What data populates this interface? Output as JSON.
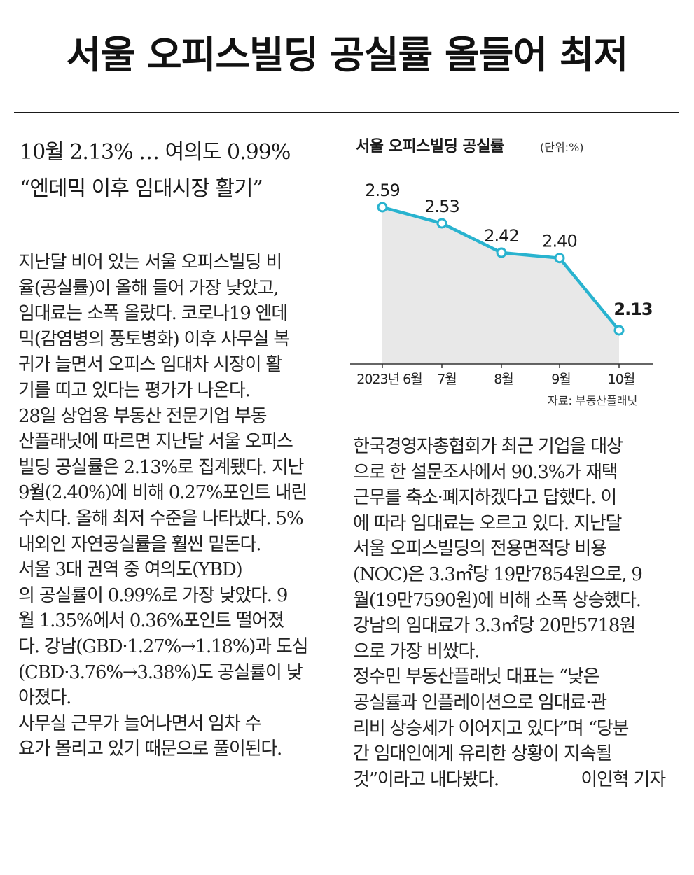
{
  "headline": "서울 오피스빌딩 공실률 올들어 최저",
  "subhead": [
    "10월 2.13% … 여의도 0.99%",
    "“엔데믹 이후 임대시장 활기”"
  ],
  "left_column": [
    "지난달 비어 있는 서울 오피스빌딩 비",
    "율(공실률)이 올해 들어 가장 낮았고,",
    "임대료는 소폭 올랐다. 코로나19 엔데",
    "믹(감염병의 풍토병화) 이후 사무실 복",
    "귀가 늘면서 오피스 임대차 시장이 활",
    "기를 띠고 있다는 평가가 나온다.",
    "  28일 상업용 부동산 전문기업 부동",
    "산플래닛에 따르면 지난달 서울 오피스",
    "빌딩 공실률은 2.13%로 집계됐다. 지난",
    "9월(2.40%)에 비해 0.27%포인트 내린",
    "수치다. 올해 최저 수준을 나타냈다. 5%",
    "내외인 자연공실률을 훨씬 밑돈다.",
    "  서울 3대 권역 중 여의도(YBD)",
    "의 공실률이 0.99%로 가장 낮았다. 9",
    "월 1.35%에서 0.36%포인트 떨어졌",
    "다. 강남(GBD·1.27%→1.18%)과 도심",
    "(CBD·3.76%→3.38%)도 공실률이 낮",
    "아졌다.",
    "  사무실 근무가 늘어나면서 임차 수",
    "요가 몰리고 있기 때문으로 풀이된다."
  ],
  "right_column": [
    "한국경영자총협회가 최근 기업을 대상",
    "으로 한 설문조사에서 90.3%가 재택",
    "근무를 축소·폐지하겠다고 답했다. 이",
    "에 따라 임대료는 오르고 있다. 지난달",
    "서울 오피스빌딩의 전용면적당 비용",
    "(NOC)은 3.3㎡당 19만7854원으로, 9",
    "월(19만7590원)에 비해 소폭 상승했다.",
    "강남의 임대료가 3.3㎡당 20만5718원",
    "으로 가장 비쌌다.",
    "  정수민 부동산플래닛 대표는 “낮은",
    "공실률과 인플레이션으로 임대료·관",
    "리비 상승세가 이어지고 있다”며 “당분",
    "간 임대인에게 유리한 상황이 지속될",
    "것”이라고 내다봤다."
  ],
  "byline": "이인혁 기자",
  "chart": {
    "title": "서울 오피스빌딩 공실률",
    "unit": "(단위:%)",
    "source": "자료: 부동산플래닛"
  },
  "chart_data": {
    "type": "area",
    "title": "서울 오피스빌딩 공실률",
    "unit": "(단위:%)",
    "categories": [
      "2023년 6월",
      "7월",
      "8월",
      "9월",
      "10월"
    ],
    "values": [
      2.59,
      2.53,
      2.42,
      2.4,
      2.13
    ],
    "labels": [
      "2.59",
      "2.53",
      "2.42",
      "2.40",
      "2.13"
    ],
    "ylim": [
      2.0,
      2.7
    ],
    "grid": false,
    "line_color": "#29b3cf",
    "fill_color": "#e8e8e8",
    "marker_fill": "#ffffff"
  }
}
